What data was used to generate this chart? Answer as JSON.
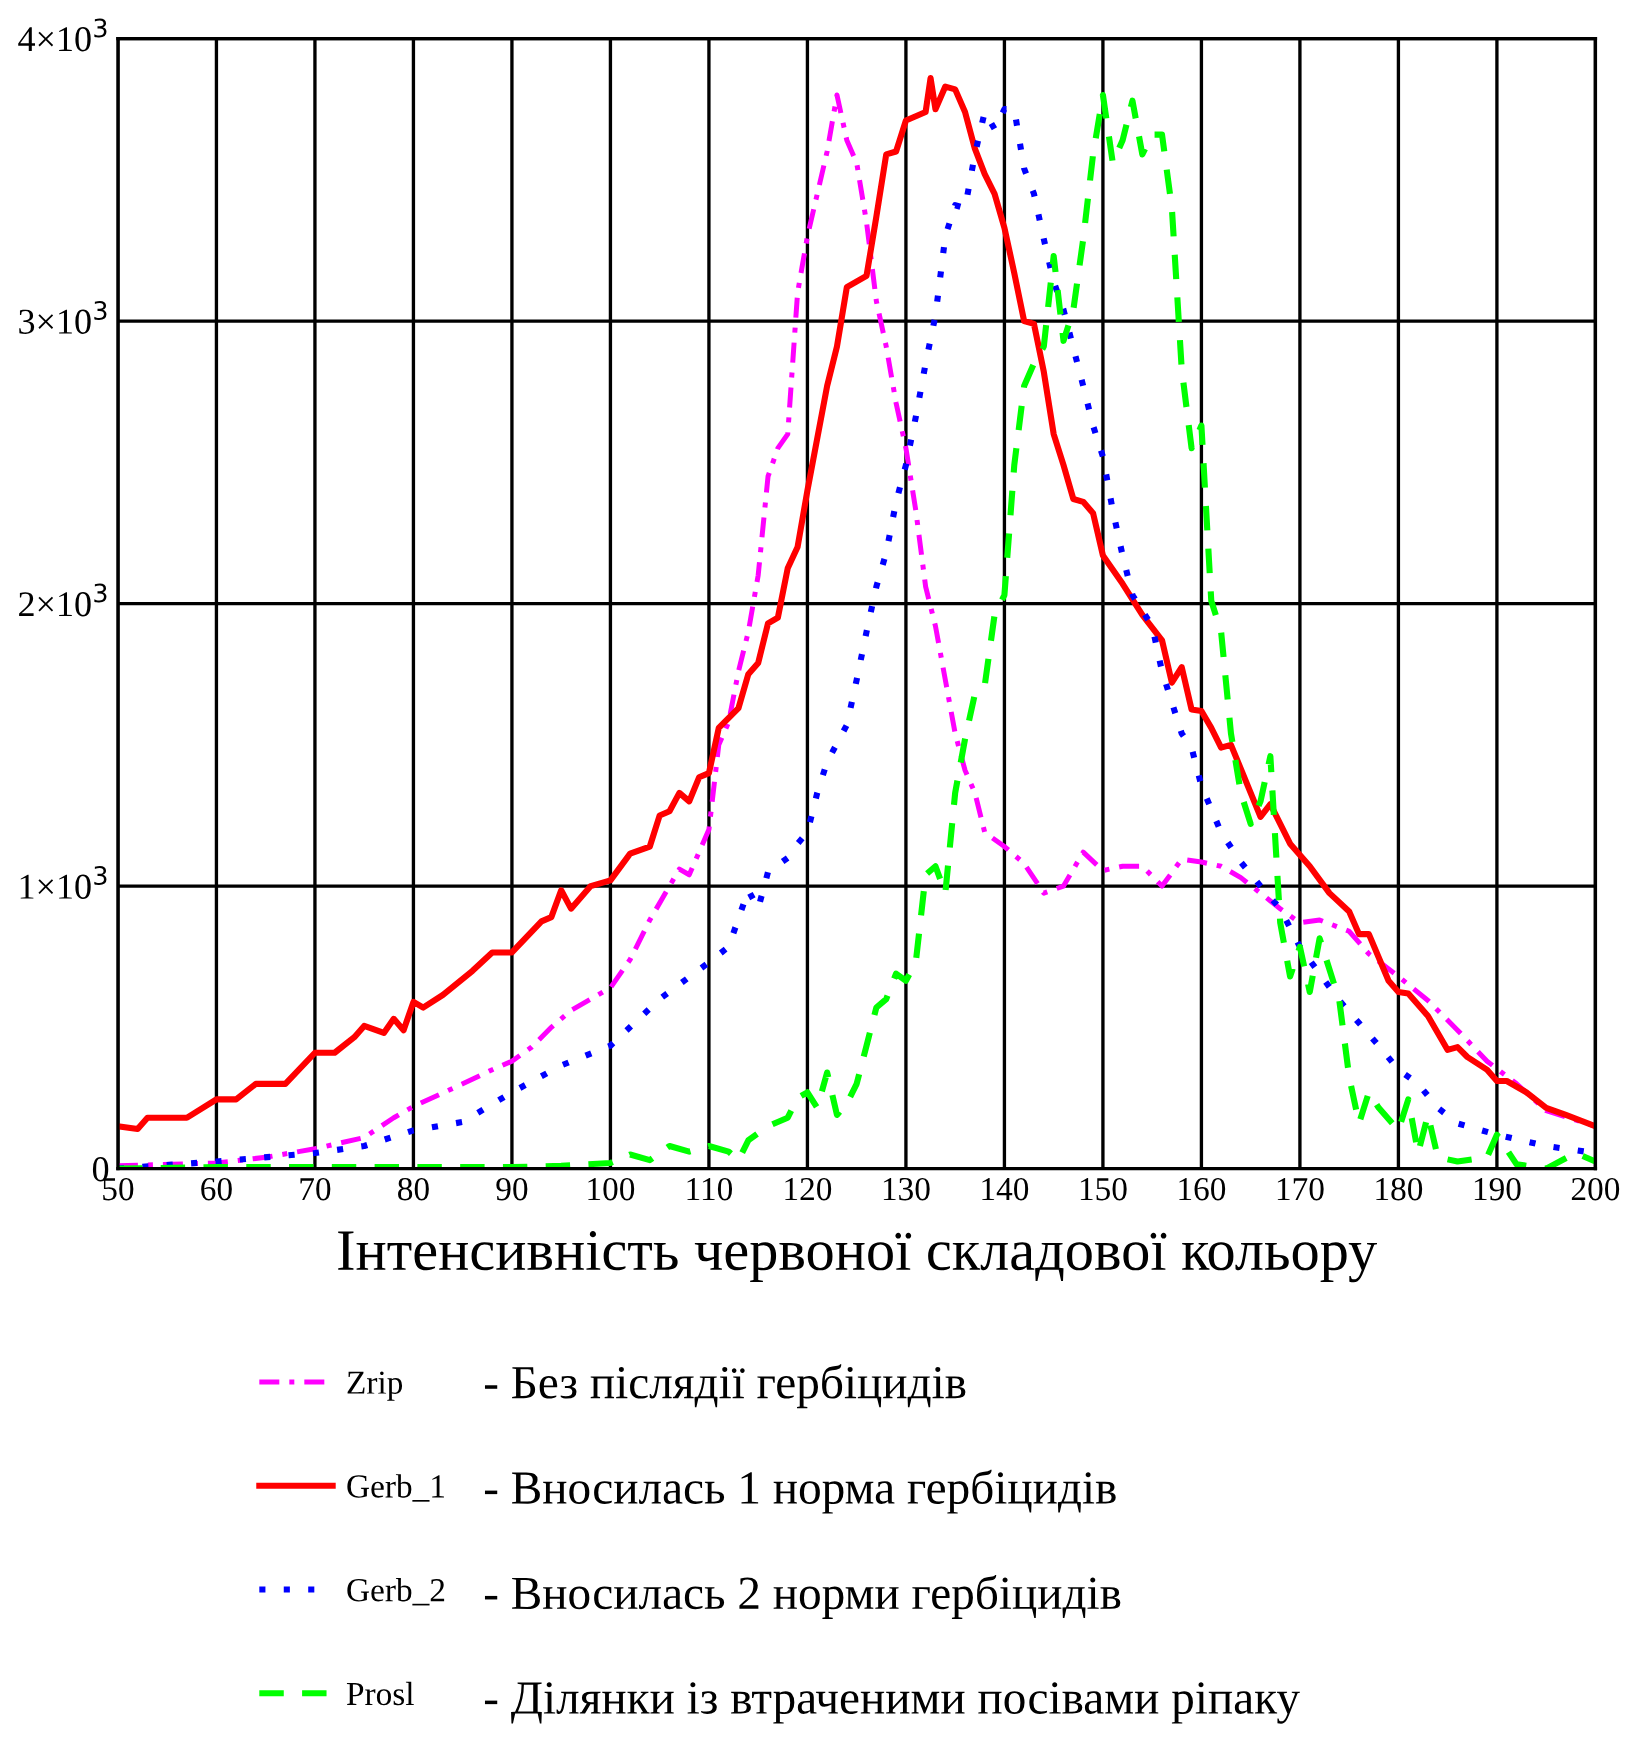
{
  "chart_data": {
    "type": "line",
    "xlabel": "Інтенсивність червоної складової кольору",
    "xlim": [
      50,
      200
    ],
    "xticks": [
      50,
      60,
      70,
      80,
      90,
      100,
      110,
      120,
      130,
      140,
      150,
      160,
      170,
      180,
      190,
      200
    ],
    "ylim": [
      0,
      4000
    ],
    "yticks": [
      0,
      {
        "value": 1000,
        "label": "1×10$^{3}$"
      },
      {
        "value": 2000,
        "label": "2×10$^{3}$"
      },
      {
        "value": 3000,
        "label": "3×10$^{3}$"
      },
      {
        "value": 4000,
        "label": "4×10$^{3}$"
      }
    ],
    "grid": true,
    "legend": "bottom",
    "annotations": [
      "- Без післядії гербіцидів",
      "- Вносилась 1 норма гербіцидів",
      "- Вносилась 2 норми гербіцидів",
      "- Ділянки із втраченими посівами ріпаку"
    ],
    "series": [
      {
        "name": "Zrip",
        "color": "#ff00ff",
        "line_style": "dashdot",
        "x": [
          50,
          60,
          65,
          70,
          75,
          78,
          80,
          85,
          88,
          90,
          92,
          94,
          96,
          98,
          100,
          102,
          104,
          106,
          107,
          108,
          110,
          111,
          112,
          113,
          114,
          115,
          116,
          117,
          118,
          119,
          120,
          121,
          122,
          123,
          124,
          125,
          126,
          127,
          128,
          129,
          130,
          131,
          132,
          133,
          134,
          135,
          136,
          137,
          138,
          140,
          142,
          144,
          146,
          148,
          150,
          152,
          154,
          156,
          158,
          160,
          162,
          164,
          166,
          168,
          170,
          172,
          175,
          177,
          180,
          183,
          186,
          189,
          192,
          195,
          200
        ],
        "values": [
          10,
          20,
          40,
          70,
          110,
          180,
          220,
          300,
          350,
          380,
          430,
          500,
          560,
          600,
          640,
          740,
          880,
          1000,
          1060,
          1040,
          1200,
          1500,
          1580,
          1760,
          1900,
          2100,
          2450,
          2550,
          2600,
          3100,
          3300,
          3450,
          3600,
          3800,
          3640,
          3560,
          3350,
          3070,
          2910,
          2710,
          2550,
          2330,
          2060,
          1920,
          1730,
          1540,
          1410,
          1330,
          1190,
          1140,
          1080,
          975,
          1000,
          1120,
          1055,
          1070,
          1070,
          1000,
          1095,
          1085,
          1070,
          1030,
          975,
          920,
          870,
          880,
          840,
          760,
          680,
          595,
          490,
          380,
          300,
          205,
          150
        ]
      },
      {
        "name": "Gerb_1",
        "color": "#ff0000",
        "line_style": "solid",
        "x": [
          50,
          52,
          53,
          57,
          60,
          62,
          64,
          67,
          70,
          72,
          74,
          75,
          77,
          78,
          79,
          80,
          81,
          83,
          86,
          88,
          90,
          93,
          94,
          95,
          96,
          98,
          100,
          102,
          104,
          105,
          106,
          107,
          108,
          109,
          110,
          111,
          113,
          114,
          115,
          116,
          117,
          118,
          119,
          120,
          122,
          123,
          124,
          126,
          127,
          128,
          129,
          130,
          132,
          132.5,
          133,
          134,
          135,
          136,
          137,
          138,
          139,
          140,
          141,
          142,
          143,
          144,
          145,
          146,
          147,
          148,
          149,
          150,
          152,
          154,
          156,
          157,
          158,
          159,
          160,
          161,
          162,
          163,
          165,
          166,
          167,
          168,
          169,
          171,
          173,
          175,
          176,
          177,
          179,
          180,
          181,
          183,
          185,
          186,
          187,
          189,
          190,
          191,
          193,
          195,
          197,
          200
        ],
        "values": [
          150,
          140,
          180,
          180,
          245,
          245,
          300,
          300,
          410,
          410,
          465,
          505,
          480,
          530,
          490,
          590,
          570,
          615,
          700,
          765,
          765,
          875,
          890,
          985,
          920,
          1000,
          1020,
          1115,
          1140,
          1250,
          1265,
          1330,
          1300,
          1385,
          1400,
          1560,
          1630,
          1750,
          1790,
          1930,
          1950,
          2125,
          2200,
          2400,
          2770,
          2910,
          3120,
          3160,
          3370,
          3590,
          3600,
          3710,
          3740,
          3860,
          3750,
          3830,
          3820,
          3740,
          3610,
          3520,
          3450,
          3330,
          3170,
          3000,
          2990,
          2820,
          2600,
          2490,
          2370,
          2360,
          2320,
          2170,
          2070,
          1960,
          1870,
          1720,
          1775,
          1625,
          1620,
          1560,
          1490,
          1500,
          1330,
          1245,
          1290,
          1220,
          1150,
          1070,
          975,
          910,
          830,
          830,
          665,
          625,
          620,
          540,
          420,
          430,
          395,
          350,
          310,
          310,
          270,
          215,
          190,
          150
        ]
      },
      {
        "name": "Gerb_2",
        "color": "#0000ff",
        "line_style": "dotted",
        "x": [
          50,
          60,
          70,
          75,
          80,
          85,
          90,
          95,
          100,
          105,
          110,
          112,
          114,
          115,
          116,
          118,
          119,
          120,
          121,
          122,
          124,
          125,
          126,
          127,
          128,
          129,
          130,
          131,
          132,
          133,
          134,
          135,
          136,
          137,
          138,
          139,
          140,
          141,
          142,
          143,
          144,
          145,
          146,
          148,
          149,
          150,
          151,
          152,
          153,
          155,
          156,
          157,
          158,
          159,
          160,
          162,
          164,
          166,
          168,
          170,
          172,
          174,
          176,
          178,
          180,
          182,
          184,
          186,
          190,
          195,
          200
        ],
        "values": [
          0,
          25,
          55,
          80,
          135,
          165,
          270,
          365,
          435,
          600,
          730,
          785,
          985,
          920,
          1050,
          1100,
          1150,
          1190,
          1330,
          1440,
          1570,
          1730,
          1900,
          2060,
          2180,
          2360,
          2490,
          2660,
          2850,
          3020,
          3300,
          3410,
          3400,
          3590,
          3740,
          3680,
          3750,
          3750,
          3540,
          3450,
          3290,
          3140,
          3040,
          2770,
          2630,
          2520,
          2330,
          2170,
          2030,
          1920,
          1760,
          1650,
          1540,
          1490,
          1355,
          1190,
          1085,
          1000,
          920,
          785,
          690,
          595,
          515,
          435,
          350,
          300,
          215,
          160,
          120,
          80,
          55
        ]
      },
      {
        "name": "Prosl",
        "color": "#00ff00",
        "line_style": "dashed",
        "x": [
          50,
          60,
          70,
          80,
          90,
          95,
          100,
          102,
          104,
          106,
          108,
          110,
          112,
          113,
          114,
          116,
          118,
          119,
          120,
          121,
          122,
          123,
          124,
          125,
          126,
          127,
          128,
          129,
          130,
          131,
          132,
          133,
          134,
          135,
          136,
          137,
          138,
          139,
          140,
          141,
          142,
          143,
          144,
          145,
          146,
          147,
          148,
          149,
          150,
          151,
          152,
          153,
          154,
          155,
          156,
          157,
          158,
          159,
          160,
          161,
          162,
          163,
          164,
          165,
          166,
          167,
          168,
          169,
          170,
          171,
          172,
          174,
          175,
          176,
          177,
          178,
          180,
          181,
          182,
          183,
          184,
          186,
          189,
          190,
          192,
          195,
          198,
          200
        ],
        "values": [
          0,
          5,
          5,
          5,
          5,
          10,
          20,
          50,
          30,
          80,
          60,
          80,
          60,
          30,
          100,
          150,
          180,
          250,
          270,
          215,
          340,
          190,
          230,
          300,
          435,
          570,
          600,
          690,
          665,
          730,
          1040,
          1070,
          975,
          1330,
          1520,
          1680,
          1710,
          1960,
          2030,
          2490,
          2770,
          2850,
          2910,
          3230,
          2930,
          3040,
          3290,
          3590,
          3800,
          3560,
          3640,
          3780,
          3590,
          3660,
          3660,
          3400,
          2830,
          2550,
          2630,
          2010,
          1900,
          1540,
          1330,
          1220,
          1300,
          1460,
          870,
          680,
          785,
          625,
          815,
          595,
          325,
          160,
          270,
          215,
          135,
          245,
          55,
          190,
          40,
          25,
          40,
          120,
          15,
          0,
          55,
          25
        ]
      }
    ]
  }
}
